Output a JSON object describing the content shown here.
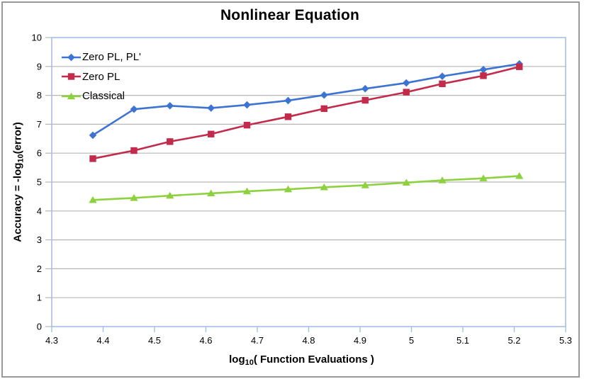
{
  "window": {
    "background": "#ffffff",
    "outer_border_color": "#97999b"
  },
  "chart_data": {
    "type": "line",
    "title": "Nonlinear Equation",
    "xlabel": {
      "pre": "log",
      "sub": "10",
      "post": "( Function Evaluations )"
    },
    "ylabel": {
      "pre": "Accuracy = -log",
      "sub": "10",
      "post": "(error)"
    },
    "xlim": [
      4.3,
      5.3
    ],
    "ylim": [
      0,
      10
    ],
    "grid": "horizontal",
    "legend_position": "top-left-inside",
    "x_tick_values": [
      4.3,
      4.4,
      4.5,
      4.6,
      4.7,
      4.8,
      4.9,
      5.0,
      5.1,
      5.2,
      5.3
    ],
    "x_tick_labels": [
      "4.3",
      "4.4",
      "4.5",
      "4.6",
      "4.7",
      "4.8",
      "4.9",
      "5",
      "5.1",
      "5.2",
      "5.3"
    ],
    "y_tick_values": [
      0,
      1,
      2,
      3,
      4,
      5,
      6,
      7,
      8,
      9,
      10
    ],
    "y_tick_labels": [
      "0",
      "1",
      "2",
      "3",
      "4",
      "5",
      "6",
      "7",
      "8",
      "9",
      "10"
    ],
    "x": [
      4.38,
      4.46,
      4.53,
      4.61,
      4.68,
      4.76,
      4.83,
      4.91,
      4.99,
      5.06,
      5.14,
      5.21
    ],
    "series": [
      {
        "name": "Zero PL, PL'",
        "color": "#3e74d1",
        "marker": "diamond",
        "values": [
          6.62,
          7.52,
          7.64,
          7.56,
          7.67,
          7.82,
          8.01,
          8.23,
          8.43,
          8.66,
          8.89,
          9.09
        ]
      },
      {
        "name": "Zero PL",
        "color": "#c22b4c",
        "marker": "square",
        "values": [
          5.81,
          6.09,
          6.4,
          6.66,
          6.97,
          7.26,
          7.54,
          7.83,
          8.11,
          8.4,
          8.68,
          8.99
        ]
      },
      {
        "name": "Classical",
        "color": "#8dd23e",
        "marker": "triangle",
        "values": [
          4.38,
          4.45,
          4.53,
          4.61,
          4.68,
          4.75,
          4.82,
          4.89,
          4.98,
          5.06,
          5.13,
          5.21
        ]
      }
    ],
    "colors": {
      "grid": "#b6b6b6",
      "plot_border": "#a4c0e4",
      "tick_text": "#000000"
    }
  }
}
